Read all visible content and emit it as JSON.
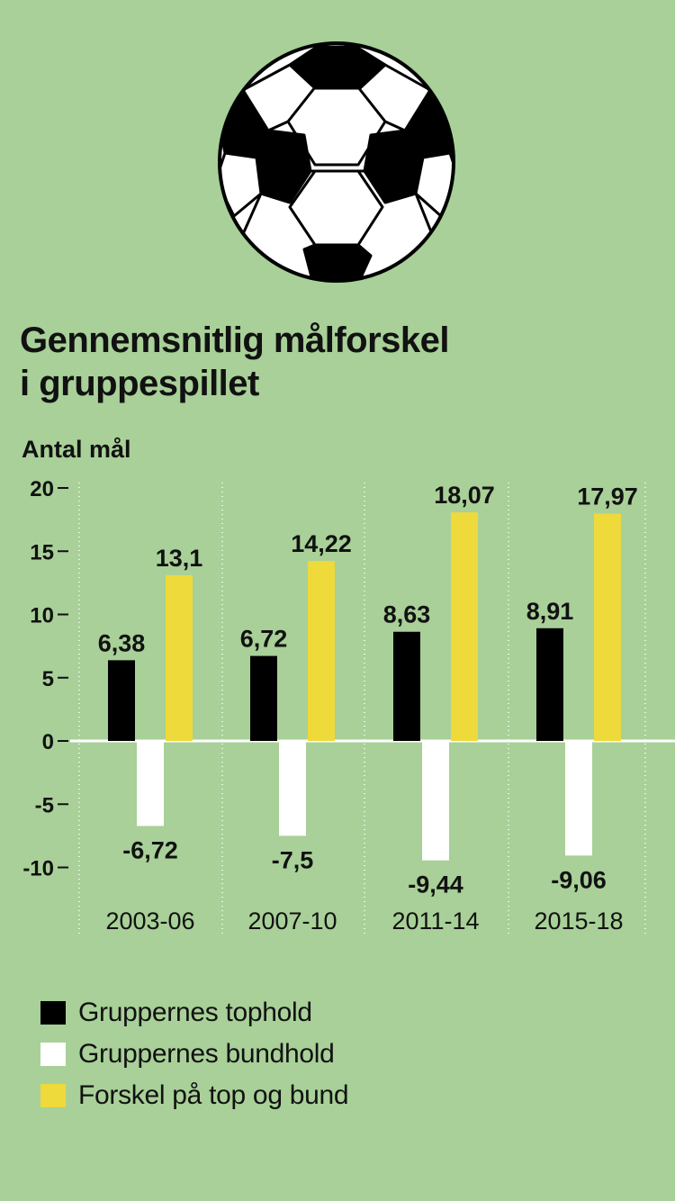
{
  "title_line1": "Gennemsnitlig målforskel",
  "title_line2": "i gruppespillet",
  "chart_data": {
    "type": "bar",
    "title": "Gennemsnitlig målforskel i gruppespillet",
    "ylabel": "Antal mål",
    "xlabel": "",
    "ylim": [
      -10,
      20
    ],
    "yticks": [
      20,
      15,
      10,
      5,
      0,
      -5,
      -10
    ],
    "categories": [
      "2003-06",
      "2007-10",
      "2011-14",
      "2015-18"
    ],
    "series": [
      {
        "name": "Gruppernes tophold",
        "values": [
          6.38,
          6.72,
          8.63,
          8.91
        ],
        "labels": [
          "6,38",
          "6,72",
          "8,63",
          "8,91"
        ],
        "color": "#000000"
      },
      {
        "name": "Gruppernes bundhold",
        "values": [
          -6.72,
          -7.5,
          -9.44,
          -9.06
        ],
        "labels": [
          "-6,72",
          "-7,5",
          "-9,44",
          "-9,06"
        ],
        "color": "#ffffff"
      },
      {
        "name": "Forskel på top og bund",
        "values": [
          13.1,
          14.22,
          18.07,
          17.97
        ],
        "labels": [
          "13,1",
          "14,22",
          "18,07",
          "17,97"
        ],
        "color": "#eeda3a"
      }
    ],
    "grid": true,
    "legend_position": "bottom-left"
  }
}
